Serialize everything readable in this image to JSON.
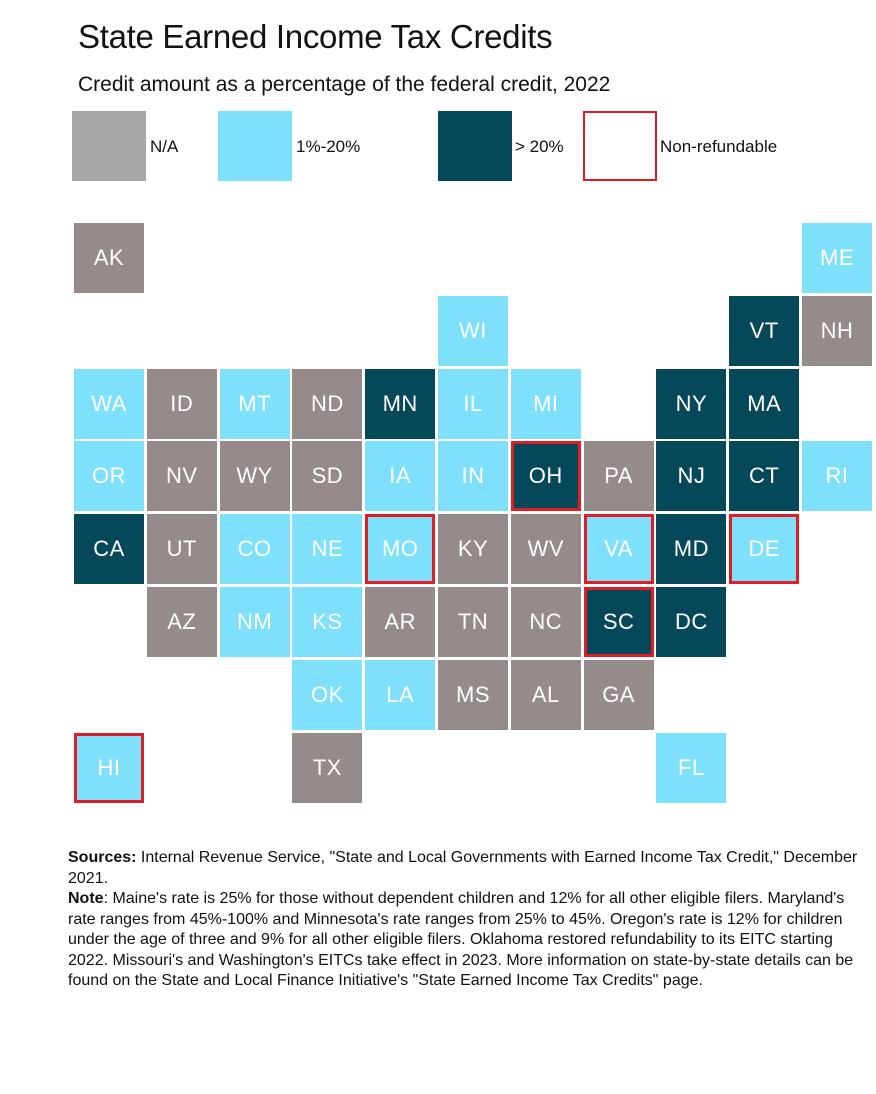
{
  "title": "State Earned Income Tax Credits",
  "subtitle": "Credit amount as a percentage of the federal credit, 2022",
  "colors": {
    "na": "#958b8b",
    "low": "#7ee0fb",
    "high": "#05485a",
    "nonrefundable_border": "#e01d25"
  },
  "legend": [
    {
      "key": "na",
      "label": "N/A"
    },
    {
      "key": "low",
      "label": "1%-20%"
    },
    {
      "key": "high",
      "label": "> 20%"
    },
    {
      "key": "nonref",
      "label": "Non-refundable"
    }
  ],
  "states": [
    {
      "abbr": "AK",
      "category": "na",
      "nonrefundable": false
    },
    {
      "abbr": "ME",
      "category": "low",
      "nonrefundable": false
    },
    {
      "abbr": "WI",
      "category": "low",
      "nonrefundable": false
    },
    {
      "abbr": "VT",
      "category": "high",
      "nonrefundable": false
    },
    {
      "abbr": "NH",
      "category": "na",
      "nonrefundable": false
    },
    {
      "abbr": "WA",
      "category": "low",
      "nonrefundable": false
    },
    {
      "abbr": "ID",
      "category": "na",
      "nonrefundable": false
    },
    {
      "abbr": "MT",
      "category": "low",
      "nonrefundable": false
    },
    {
      "abbr": "ND",
      "category": "na",
      "nonrefundable": false
    },
    {
      "abbr": "MN",
      "category": "high",
      "nonrefundable": false
    },
    {
      "abbr": "IL",
      "category": "low",
      "nonrefundable": false
    },
    {
      "abbr": "MI",
      "category": "low",
      "nonrefundable": false
    },
    {
      "abbr": "NY",
      "category": "high",
      "nonrefundable": false
    },
    {
      "abbr": "MA",
      "category": "high",
      "nonrefundable": false
    },
    {
      "abbr": "OR",
      "category": "low",
      "nonrefundable": false
    },
    {
      "abbr": "NV",
      "category": "na",
      "nonrefundable": false
    },
    {
      "abbr": "WY",
      "category": "na",
      "nonrefundable": false
    },
    {
      "abbr": "SD",
      "category": "na",
      "nonrefundable": false
    },
    {
      "abbr": "IA",
      "category": "low",
      "nonrefundable": false
    },
    {
      "abbr": "IN",
      "category": "low",
      "nonrefundable": false
    },
    {
      "abbr": "OH",
      "category": "high",
      "nonrefundable": true
    },
    {
      "abbr": "PA",
      "category": "na",
      "nonrefundable": false
    },
    {
      "abbr": "NJ",
      "category": "high",
      "nonrefundable": false
    },
    {
      "abbr": "CT",
      "category": "high",
      "nonrefundable": false
    },
    {
      "abbr": "RI",
      "category": "low",
      "nonrefundable": false
    },
    {
      "abbr": "CA",
      "category": "high",
      "nonrefundable": false
    },
    {
      "abbr": "UT",
      "category": "na",
      "nonrefundable": false
    },
    {
      "abbr": "CO",
      "category": "low",
      "nonrefundable": false
    },
    {
      "abbr": "NE",
      "category": "low",
      "nonrefundable": false
    },
    {
      "abbr": "MO",
      "category": "low",
      "nonrefundable": true
    },
    {
      "abbr": "KY",
      "category": "na",
      "nonrefundable": false
    },
    {
      "abbr": "WV",
      "category": "na",
      "nonrefundable": false
    },
    {
      "abbr": "VA",
      "category": "low",
      "nonrefundable": true
    },
    {
      "abbr": "MD",
      "category": "high",
      "nonrefundable": false
    },
    {
      "abbr": "DE",
      "category": "low",
      "nonrefundable": true
    },
    {
      "abbr": "AZ",
      "category": "na",
      "nonrefundable": false
    },
    {
      "abbr": "NM",
      "category": "low",
      "nonrefundable": false
    },
    {
      "abbr": "KS",
      "category": "low",
      "nonrefundable": false
    },
    {
      "abbr": "AR",
      "category": "na",
      "nonrefundable": false
    },
    {
      "abbr": "TN",
      "category": "na",
      "nonrefundable": false
    },
    {
      "abbr": "NC",
      "category": "na",
      "nonrefundable": false
    },
    {
      "abbr": "SC",
      "category": "high",
      "nonrefundable": true
    },
    {
      "abbr": "DC",
      "category": "high",
      "nonrefundable": false
    },
    {
      "abbr": "OK",
      "category": "low",
      "nonrefundable": false
    },
    {
      "abbr": "LA",
      "category": "low",
      "nonrefundable": false
    },
    {
      "abbr": "MS",
      "category": "na",
      "nonrefundable": false
    },
    {
      "abbr": "AL",
      "category": "na",
      "nonrefundable": false
    },
    {
      "abbr": "GA",
      "category": "na",
      "nonrefundable": false
    },
    {
      "abbr": "HI",
      "category": "low",
      "nonrefundable": true
    },
    {
      "abbr": "TX",
      "category": "na",
      "nonrefundable": false
    },
    {
      "abbr": "FL",
      "category": "low",
      "nonrefundable": false
    }
  ],
  "sources_label": "Sources:",
  "sources_text": " Internal Revenue Service, \"State and Local Governments with Earned Income Tax Credit,\" December 2021.",
  "note_label": "Note",
  "note_text": ": Maine's rate is 25% for those without dependent children and 12% for all other eligible filers. Maryland's rate ranges from 45%-100% and Minnesota's rate ranges from 25% to 45%. Oregon's rate is 12% for children under the age of three and 9% for all other eligible filers. Oklahoma restored refundability to its EITC starting 2022. Missouri's and Washington's EITCs take effect in 2023. More information on state-by-state details can be found on the State and Local Finance Initiative's \"State Earned Income Tax Credits\" page."
}
